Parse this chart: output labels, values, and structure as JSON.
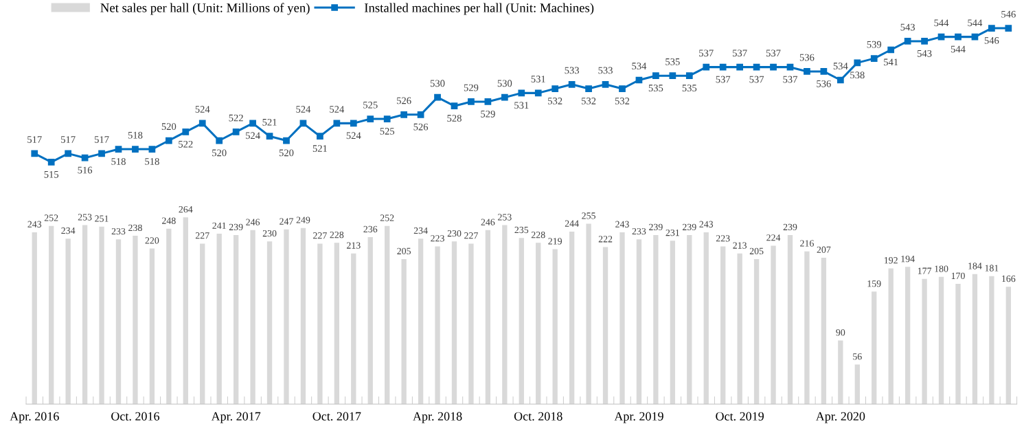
{
  "chart_data": {
    "type": "bar",
    "categories": [
      "Apr. 2016",
      null,
      null,
      null,
      null,
      null,
      "Oct. 2016",
      null,
      null,
      null,
      null,
      null,
      "Apr. 2017",
      null,
      null,
      null,
      null,
      null,
      "Oct. 2017",
      null,
      null,
      null,
      null,
      null,
      "Apr. 2018",
      null,
      null,
      null,
      null,
      null,
      "Oct. 2018",
      null,
      null,
      null,
      null,
      null,
      "Apr. 2019",
      null,
      null,
      null,
      null,
      null,
      "Oct. 2019",
      null,
      null,
      null,
      null,
      null,
      "Apr. 2020",
      null,
      null,
      null,
      null,
      null,
      null,
      null,
      null,
      null,
      null
    ],
    "series": [
      {
        "name": "Net sales per hall (Unit: Millions of yen)",
        "color": "#d9d9d9",
        "values": [
          243,
          252,
          234,
          253,
          251,
          233,
          238,
          220,
          248,
          264,
          227,
          241,
          239,
          246,
          230,
          247,
          249,
          227,
          228,
          213,
          236,
          252,
          205,
          234,
          223,
          230,
          227,
          246,
          253,
          235,
          228,
          219,
          244,
          255,
          222,
          243,
          233,
          239,
          231,
          239,
          243,
          223,
          213,
          205,
          224,
          239,
          216,
          207,
          90,
          56,
          159,
          192,
          194,
          177,
          180,
          170,
          184,
          181,
          166
        ]
      },
      {
        "name": "Installed machines per hall (Unit: Machines)",
        "type": "line",
        "axis": "y2",
        "color": "#0070c0",
        "values": [
          517,
          515,
          517,
          516,
          517,
          518,
          518,
          518,
          520,
          522,
          524,
          520,
          522,
          524,
          521,
          520,
          524,
          521,
          524,
          524,
          525,
          525,
          526,
          526,
          530,
          528,
          529,
          529,
          530,
          531,
          531,
          532,
          533,
          532,
          533,
          532,
          534,
          535,
          535,
          535,
          537,
          537,
          537,
          537,
          537,
          537,
          536,
          536,
          534,
          538,
          539,
          541,
          543,
          543,
          544,
          544,
          544,
          546,
          546
        ]
      }
    ],
    "ylim": [
      0,
      562
    ],
    "y2lim": [
      459,
      551
    ],
    "tick_labels": "x",
    "data_labels": true,
    "grid": false,
    "legend": "top",
    "marker": "square",
    "line_style": "solid"
  }
}
